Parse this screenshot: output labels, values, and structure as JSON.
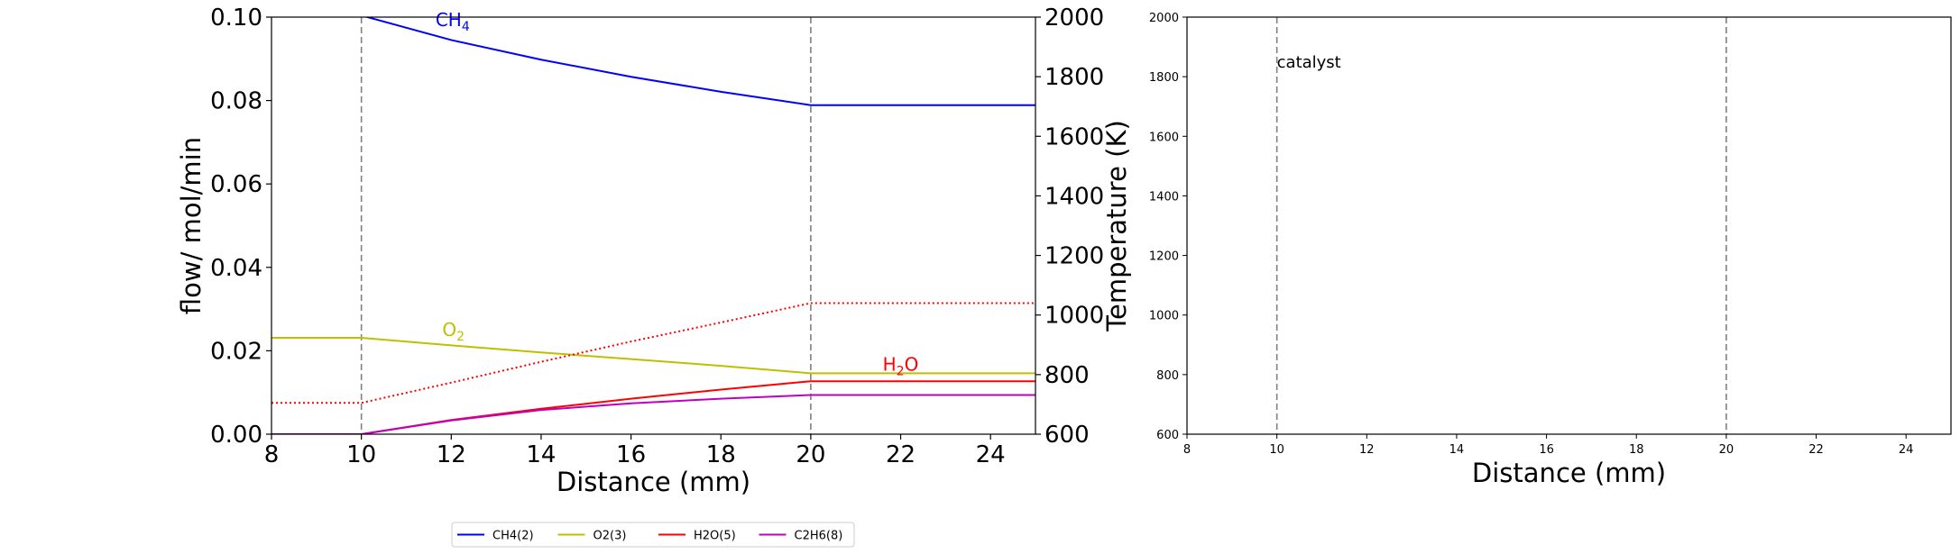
{
  "chart_data": [
    {
      "type": "line",
      "xlabel": "Distance (mm)",
      "ylabel": "flow/ mol/min",
      "y2label": "Temperature (K)",
      "xlim": [
        8,
        25
      ],
      "ylim": [
        0,
        0.1
      ],
      "y2lim": [
        600,
        2000
      ],
      "xticks": [
        "8",
        "10",
        "12",
        "14",
        "16",
        "18",
        "20",
        "22",
        "24"
      ],
      "yticks": [
        "0.00",
        "0.02",
        "0.04",
        "0.06",
        "0.08",
        "0.10"
      ],
      "y2ticks": [
        "600",
        "800",
        "1000",
        "1200",
        "1400",
        "1600",
        "1800",
        "2000"
      ],
      "vlines": [
        10,
        20
      ],
      "series": [
        {
          "name": "CH4(2)",
          "color": "#0000ff",
          "x": [
            8,
            10,
            12,
            14,
            16,
            18,
            20,
            22,
            25
          ],
          "values": [
            0.1015,
            0.1004,
            0.0945,
            0.0898,
            0.0857,
            0.0821,
            0.0789,
            0.0789,
            0.0789
          ]
        },
        {
          "name": "O2(3)",
          "color": "#bfbf00",
          "x": [
            8,
            10,
            12,
            14,
            16,
            18,
            20,
            22,
            25
          ],
          "values": [
            0.0231,
            0.0231,
            0.0213,
            0.0196,
            0.018,
            0.0164,
            0.0146,
            0.0146,
            0.0146
          ]
        },
        {
          "name": "H2O(5)",
          "color": "#ff0000",
          "x": [
            8,
            10,
            12,
            14,
            16,
            18,
            20,
            22,
            25
          ],
          "values": [
            0.0,
            0.0,
            0.0034,
            0.0061,
            0.0085,
            0.0107,
            0.0127,
            0.0127,
            0.0127
          ]
        },
        {
          "name": "C2H6(8)",
          "color": "#bf00bf",
          "x": [
            8,
            10,
            12,
            14,
            16,
            18,
            20,
            22,
            25
          ],
          "values": [
            0.0,
            0.0,
            0.0033,
            0.0058,
            0.0074,
            0.0085,
            0.0094,
            0.0094,
            0.0094
          ]
        }
      ],
      "temperature": {
        "color": "#ff0000",
        "style": "dotted",
        "x": [
          8,
          10,
          12,
          14,
          16,
          18,
          20,
          22,
          25
        ],
        "values": [
          705,
          705,
          773,
          843,
          911,
          975,
          1040,
          1040,
          1040
        ]
      },
      "annotations": [
        {
          "main": "CH",
          "sub": "4",
          "color": "#0000ff",
          "x": 11.65,
          "y": 0.0978
        },
        {
          "main": "O",
          "sub": "2",
          "color": "#bfbf00",
          "x": 11.8,
          "y": 0.0235
        },
        {
          "main": "H",
          "sub": "2",
          "tail": "O",
          "color": "#ff0000",
          "x": 21.6,
          "y": 0.0152
        }
      ]
    },
    {
      "type": "line",
      "xlabel": "Distance (mm)",
      "xlim": [
        8,
        25
      ],
      "ylim": [
        600,
        2000
      ],
      "xticks": [
        "8",
        "10",
        "12",
        "14",
        "16",
        "18",
        "20",
        "22",
        "24"
      ],
      "yticks": [
        "600",
        "800",
        "1000",
        "1200",
        "1400",
        "1600",
        "1800",
        "2000"
      ],
      "vlines": [
        10,
        20
      ],
      "annotations": [
        {
          "text": "catalyst",
          "x": 10.0,
          "y": 1830
        }
      ]
    }
  ],
  "legend": {
    "placement": "bottom",
    "items": [
      {
        "label": "CH4(2)",
        "color": "#0000ff"
      },
      {
        "label": "O2(3)",
        "color": "#bfbf00"
      },
      {
        "label": "H2O(5)",
        "color": "#ff0000"
      },
      {
        "label": "C2H6(8)",
        "color": "#bf00bf"
      }
    ]
  }
}
